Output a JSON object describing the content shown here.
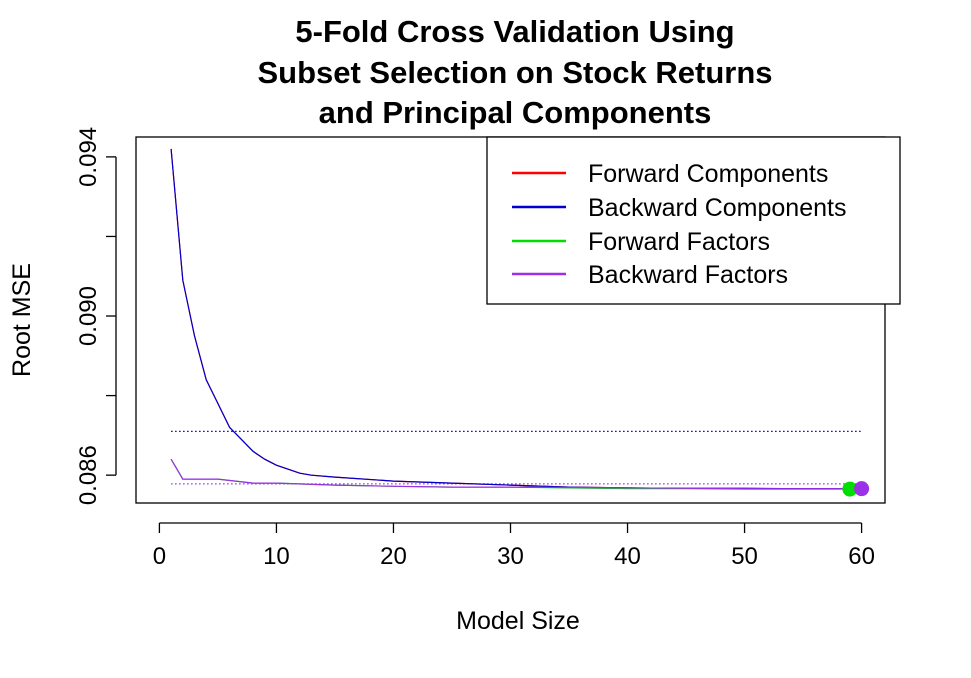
{
  "chart_data": {
    "type": "line",
    "title": [
      "5-Fold Cross Validation Using",
      "Subset Selection on Stock Returns",
      "and Principal Components"
    ],
    "xlabel": "Model Size",
    "ylabel": "Root MSE",
    "xlim": [
      -2,
      62
    ],
    "ylim": [
      0.0853,
      0.0945
    ],
    "xticks": [
      0,
      10,
      20,
      30,
      40,
      50,
      60
    ],
    "xtick_labels": [
      "0",
      "10",
      "20",
      "30",
      "40",
      "50",
      "60"
    ],
    "yticks": [
      0.086,
      0.088,
      0.09,
      0.092,
      0.094
    ],
    "ytick_labels": [
      "0.086",
      "",
      "0.090",
      "",
      "0.094"
    ],
    "grid": false,
    "legend_position": "top-right",
    "series": [
      {
        "name": "Forward Components",
        "color": "#ff0000",
        "x": [
          1,
          2,
          3,
          4,
          5,
          6,
          7,
          8,
          9,
          10,
          11,
          12,
          13,
          15,
          20,
          25,
          30,
          35,
          40,
          45,
          50,
          55,
          60
        ],
        "y": [
          0.0942,
          0.0909,
          0.0895,
          0.0884,
          0.0878,
          0.0872,
          0.0869,
          0.0866,
          0.0864,
          0.08625,
          0.08615,
          0.08605,
          0.086,
          0.08595,
          0.08585,
          0.0858,
          0.08575,
          0.0857,
          0.08568,
          0.08567,
          0.08567,
          0.08566,
          0.08566
        ]
      },
      {
        "name": "Backward Components",
        "color": "#0000cc",
        "x": [
          1,
          2,
          3,
          4,
          5,
          6,
          7,
          8,
          9,
          10,
          11,
          12,
          13,
          15,
          20,
          25,
          30,
          35,
          40,
          45,
          50,
          55,
          60
        ],
        "y": [
          0.0942,
          0.0909,
          0.0895,
          0.0884,
          0.0878,
          0.0872,
          0.0869,
          0.0866,
          0.0864,
          0.08625,
          0.08615,
          0.08605,
          0.086,
          0.08595,
          0.08585,
          0.0858,
          0.08575,
          0.0857,
          0.08568,
          0.08567,
          0.08567,
          0.08566,
          0.08566
        ]
      },
      {
        "name": "Forward Factors",
        "color": "#00dd00",
        "x": [
          1,
          2,
          5,
          8,
          10,
          15,
          20,
          25,
          30,
          35,
          40,
          45,
          50,
          55,
          59
        ],
        "y": [
          0.0864,
          0.0859,
          0.0859,
          0.0858,
          0.0858,
          0.08575,
          0.08572,
          0.0857,
          0.0857,
          0.08568,
          0.08566,
          0.08566,
          0.08565,
          0.08565,
          0.08565
        ]
      },
      {
        "name": "Backward Factors",
        "color": "#9b30e6",
        "x": [
          1,
          2,
          5,
          8,
          10,
          15,
          20,
          25,
          30,
          35,
          40,
          45,
          50,
          55,
          60
        ],
        "y": [
          0.0864,
          0.0859,
          0.0859,
          0.0858,
          0.0858,
          0.08575,
          0.08572,
          0.0857,
          0.0857,
          0.08569,
          0.08568,
          0.08567,
          0.08566,
          0.08566,
          0.08566
        ]
      }
    ],
    "reference_lines": [
      {
        "color": "#0000cc",
        "style": "dotted",
        "y": 0.0871,
        "x_range": [
          1,
          60
        ]
      },
      {
        "color": "#9b30e6",
        "style": "dotted",
        "y": 0.08578,
        "x_range": [
          1,
          60
        ]
      }
    ],
    "highlight_points": [
      {
        "series": "Forward Factors",
        "color": "#00dd00",
        "x": 59,
        "y": 0.08565
      },
      {
        "series": "Backward Factors",
        "color": "#9b30e6",
        "x": 60,
        "y": 0.08566
      }
    ]
  }
}
